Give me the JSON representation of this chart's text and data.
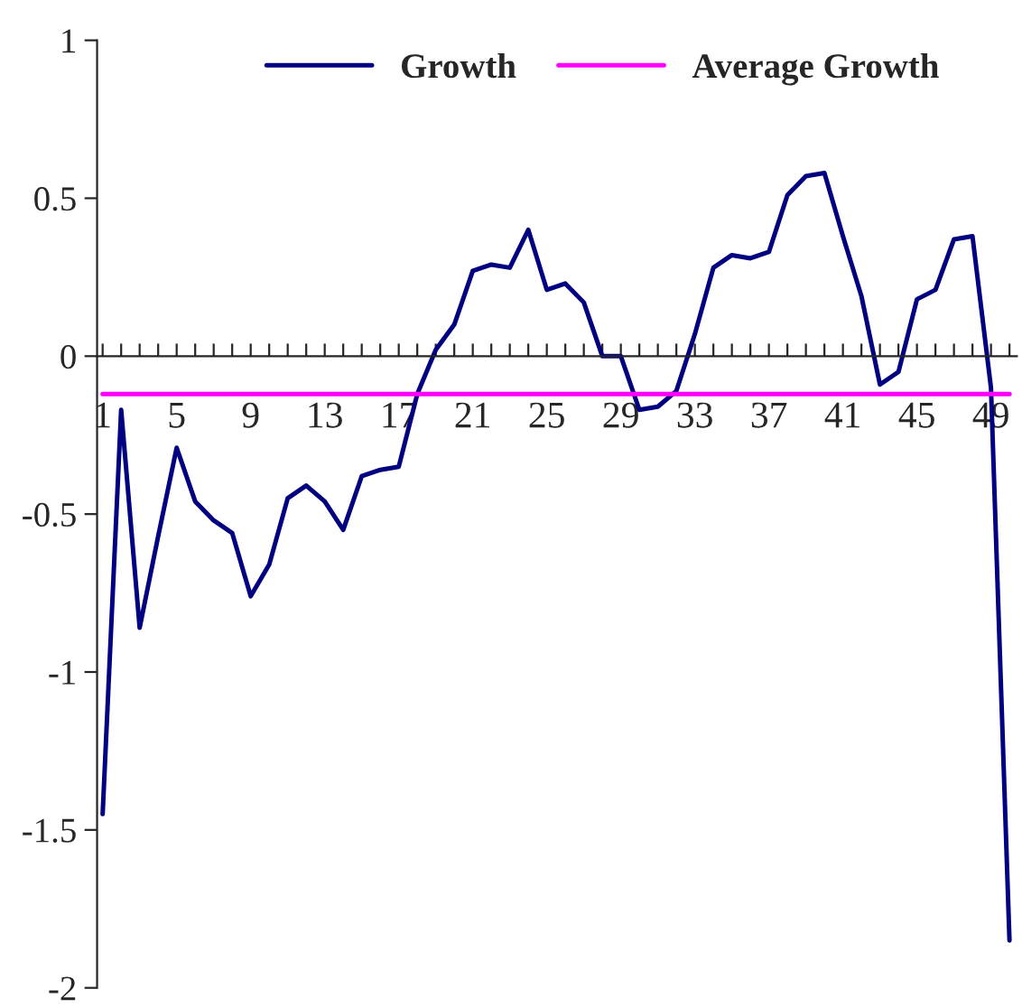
{
  "chart_data": {
    "type": "line",
    "categories": [
      "1",
      null,
      null,
      null,
      "5",
      null,
      null,
      null,
      "9",
      null,
      null,
      null,
      "13",
      null,
      null,
      null,
      "17",
      null,
      null,
      null,
      "21",
      null,
      null,
      null,
      "25",
      null,
      null,
      null,
      "29",
      null,
      null,
      null,
      "33",
      null,
      null,
      null,
      "37",
      null,
      null,
      null,
      "41",
      null,
      null,
      null,
      "45",
      null,
      null,
      null,
      "49",
      null
    ],
    "series": [
      {
        "name": "Growth",
        "color": "#000080",
        "values": [
          -1.45,
          -0.17,
          -0.86,
          -0.57,
          -0.29,
          -0.46,
          -0.52,
          -0.56,
          -0.76,
          -0.66,
          -0.45,
          -0.41,
          -0.46,
          -0.55,
          -0.38,
          -0.36,
          -0.35,
          -0.12,
          0.02,
          0.1,
          0.27,
          0.29,
          0.28,
          0.4,
          0.21,
          0.23,
          0.17,
          0.0,
          0.0,
          -0.17,
          -0.16,
          -0.11,
          0.07,
          0.28,
          0.32,
          0.31,
          0.33,
          0.51,
          0.57,
          0.58,
          0.38,
          0.19,
          -0.09,
          -0.05,
          0.18,
          0.21,
          0.37,
          0.38,
          -0.1,
          -1.85
        ]
      },
      {
        "name": "Average Growth",
        "color": "#ff00ff",
        "values": [
          -0.12,
          -0.12,
          -0.12,
          -0.12,
          -0.12,
          -0.12,
          -0.12,
          -0.12,
          -0.12,
          -0.12,
          -0.12,
          -0.12,
          -0.12,
          -0.12,
          -0.12,
          -0.12,
          -0.12,
          -0.12,
          -0.12,
          -0.12,
          -0.12,
          -0.12,
          -0.12,
          -0.12,
          -0.12,
          -0.12,
          -0.12,
          -0.12,
          -0.12,
          -0.12,
          -0.12,
          -0.12,
          -0.12,
          -0.12,
          -0.12,
          -0.12,
          -0.12,
          -0.12,
          -0.12,
          -0.12,
          -0.12,
          -0.12,
          -0.12,
          -0.12,
          -0.12,
          -0.12,
          -0.12,
          -0.12,
          -0.12,
          -0.12
        ]
      }
    ],
    "ylim": [
      -2,
      1
    ],
    "yticks": [
      1,
      0.5,
      0,
      -0.5,
      -1,
      -1.5,
      -2
    ],
    "grid": false,
    "legend": "top",
    "marker": "none",
    "line_style": "solid"
  }
}
